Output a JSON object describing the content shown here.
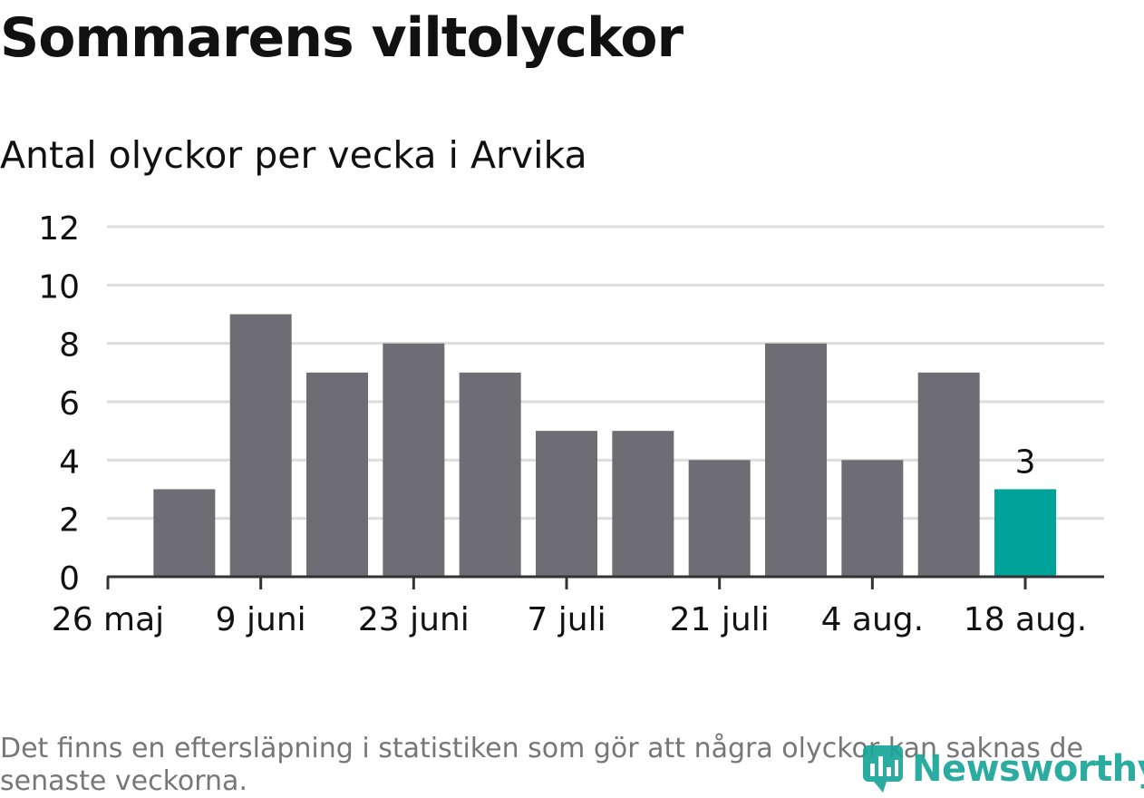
{
  "title": "Sommarens viltolyckor",
  "subtitle": "Antal olyckor per vecka i Arvika",
  "footnote": "Det finns en eftersläpning i statistiken som gör att några olyckor kan saknas de senaste veckorna.",
  "logo_text": "Newsworthy",
  "colors": {
    "bar": "#6e6d73",
    "highlight": "#00a39a",
    "grid": "#dddddd",
    "axis": "#333333",
    "text": "#111111",
    "footnote": "#777777"
  },
  "chart_data": {
    "type": "bar",
    "x_tick_labels": [
      "26 maj",
      "9 juni",
      "23 juni",
      "7 juli",
      "21 juli",
      "4 aug.",
      "18 aug."
    ],
    "weeks": [
      "2 juni",
      "9 juni",
      "16 juni",
      "23 juni",
      "30 juni",
      "7 juli",
      "14 juli",
      "21 juli",
      "28 juli",
      "4 aug.",
      "11 aug.",
      "18 aug."
    ],
    "values": [
      3,
      9,
      7,
      8,
      7,
      5,
      5,
      4,
      8,
      4,
      7,
      3
    ],
    "highlight_index": 11,
    "highlight_label": "3",
    "y_ticks": [
      0,
      2,
      4,
      6,
      8,
      10,
      12
    ],
    "ylim": [
      0,
      12
    ],
    "grid": true
  }
}
